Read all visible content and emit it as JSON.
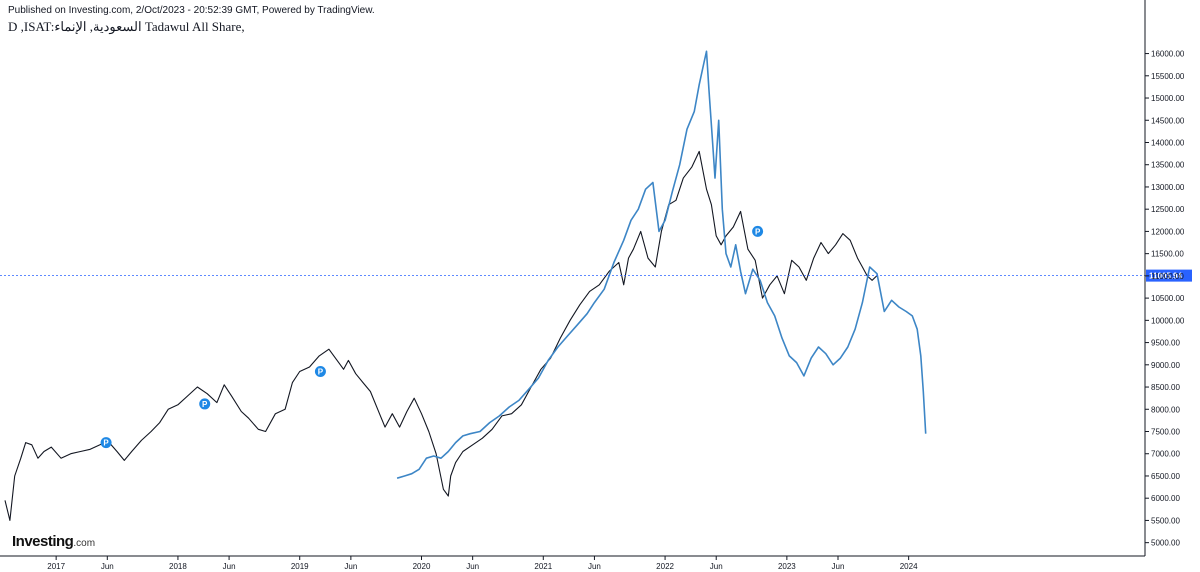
{
  "header": {
    "published": "Published on Investing.com, 2/Oct/2023 - 20:52:39 GMT, Powered by TradingView.",
    "symbol": "D ,ISAT:السعودية, الإنماء Tadawul All Share,"
  },
  "logo": {
    "brand": "Investing",
    "domain": ".com"
  },
  "colors": {
    "black_series": "#131722",
    "blue_series": "#3d86c6",
    "marker": "#1e88e5",
    "price_line": "#2962ff",
    "axis": "#131722"
  },
  "chart_data": {
    "type": "line",
    "ylim": [
      4700,
      16350
    ],
    "y_ticks": [
      "5000.00",
      "5500.00",
      "6000.00",
      "6500.00",
      "7000.00",
      "7500.00",
      "8000.00",
      "8500.00",
      "9000.00",
      "9500.00",
      "10000.00",
      "10500.00",
      "11000.00",
      "11500.00",
      "12000.00",
      "12500.00",
      "13000.00",
      "13500.00",
      "14000.00",
      "14500.00",
      "15000.00",
      "15500.00",
      "16000.00"
    ],
    "x_labels": [
      {
        "label": "2017",
        "t": 2017.0
      },
      {
        "label": "Jun",
        "t": 2017.42
      },
      {
        "label": "2018",
        "t": 2018.0
      },
      {
        "label": "Jun",
        "t": 2018.42
      },
      {
        "label": "2019",
        "t": 2019.0
      },
      {
        "label": "Jun",
        "t": 2019.42
      },
      {
        "label": "2020",
        "t": 2020.0
      },
      {
        "label": "Jun",
        "t": 2020.42
      },
      {
        "label": "2021",
        "t": 2021.0
      },
      {
        "label": "Jun",
        "t": 2021.42
      },
      {
        "label": "2022",
        "t": 2022.0
      },
      {
        "label": "Jun",
        "t": 2022.42
      },
      {
        "label": "2023",
        "t": 2023.0
      },
      {
        "label": "Jun",
        "t": 2023.42
      },
      {
        "label": "2024",
        "t": 2024.0
      }
    ],
    "current_price": 11005.94,
    "current_price_label": "11005.94",
    "series": [
      {
        "color": "#131722",
        "x": [
          2016.58,
          2016.62,
          2016.66,
          2016.71,
          2016.75,
          2016.8,
          2016.85,
          2016.9,
          2016.96,
          2017.04,
          2017.12,
          2017.2,
          2017.28,
          2017.36,
          2017.42,
          2017.5,
          2017.56,
          2017.62,
          2017.7,
          2017.78,
          2017.85,
          2017.92,
          2018.0,
          2018.08,
          2018.16,
          2018.24,
          2018.32,
          2018.38,
          2018.44,
          2018.52,
          2018.58,
          2018.66,
          2018.72,
          2018.8,
          2018.88,
          2018.94,
          2019.0,
          2019.08,
          2019.16,
          2019.24,
          2019.32,
          2019.36,
          2019.4,
          2019.46,
          2019.52,
          2019.58,
          2019.64,
          2019.7,
          2019.76,
          2019.82,
          2019.88,
          2019.94,
          2020.0,
          2020.06,
          2020.12,
          2020.18,
          2020.22,
          2020.24,
          2020.28,
          2020.34,
          2020.42,
          2020.5,
          2020.58,
          2020.66,
          2020.74,
          2020.82,
          2020.9,
          2020.98,
          2021.06,
          2021.14,
          2021.22,
          2021.3,
          2021.38,
          2021.46,
          2021.54,
          2021.62,
          2021.66,
          2021.7,
          2021.74,
          2021.8,
          2021.86,
          2021.92,
          2021.97,
          2022.03,
          2022.09,
          2022.15,
          2022.22,
          2022.28,
          2022.34,
          2022.38,
          2022.42,
          2022.46,
          2022.5,
          2022.56,
          2022.62,
          2022.68,
          2022.74,
          2022.8,
          2022.86,
          2022.92,
          2022.98,
          2023.04,
          2023.1,
          2023.16,
          2023.22,
          2023.28,
          2023.34,
          2023.4,
          2023.46,
          2023.52,
          2023.58,
          2023.62,
          2023.66,
          2023.7,
          2023.74
        ],
        "y": [
          5950,
          5500,
          6500,
          6900,
          7250,
          7200,
          6900,
          7050,
          7150,
          6900,
          7000,
          7050,
          7100,
          7200,
          7300,
          7050,
          6850,
          7050,
          7300,
          7500,
          7700,
          8000,
          8100,
          8300,
          8500,
          8350,
          8150,
          8550,
          8300,
          7950,
          7800,
          7550,
          7500,
          7900,
          8000,
          8600,
          8850,
          8950,
          9200,
          9350,
          9050,
          8900,
          9100,
          8800,
          8600,
          8400,
          8000,
          7600,
          7900,
          7600,
          7950,
          8250,
          7900,
          7500,
          7000,
          6200,
          6050,
          6500,
          6800,
          7050,
          7200,
          7350,
          7550,
          7850,
          7900,
          8100,
          8500,
          8900,
          9150,
          9600,
          10000,
          10350,
          10650,
          10800,
          11100,
          11300,
          10800,
          11400,
          11600,
          12000,
          11400,
          11200,
          12000,
          12600,
          12700,
          13200,
          13450,
          13800,
          12950,
          12600,
          11900,
          11700,
          11900,
          12100,
          12450,
          11600,
          11350,
          10500,
          10800,
          11000,
          10600,
          11350,
          11200,
          10900,
          11400,
          11750,
          11500,
          11700,
          11950,
          11800,
          11400,
          11200,
          11000,
          10900,
          11005.94
        ]
      },
      {
        "color": "#3d86c6",
        "x": [
          2019.8,
          2019.86,
          2019.92,
          2019.98,
          2020.04,
          2020.1,
          2020.16,
          2020.22,
          2020.28,
          2020.34,
          2020.4,
          2020.48,
          2020.56,
          2020.64,
          2020.72,
          2020.8,
          2020.88,
          2020.96,
          2021.04,
          2021.12,
          2021.2,
          2021.28,
          2021.36,
          2021.42,
          2021.5,
          2021.58,
          2021.66,
          2021.72,
          2021.78,
          2021.84,
          2021.9,
          2021.95,
          2022.0,
          2022.06,
          2022.12,
          2022.18,
          2022.24,
          2022.28,
          2022.32,
          2022.34,
          2022.36,
          2022.39,
          2022.41,
          2022.44,
          2022.47,
          2022.5,
          2022.54,
          2022.58,
          2022.62,
          2022.66,
          2022.72,
          2022.78,
          2022.84,
          2022.9,
          2022.96,
          2023.02,
          2023.08,
          2023.14,
          2023.2,
          2023.26,
          2023.32,
          2023.38,
          2023.44,
          2023.5,
          2023.56,
          2023.62,
          2023.68,
          2023.74,
          2023.8,
          2023.86,
          2023.92,
          2023.98,
          2024.03,
          2024.07,
          2024.1,
          2024.12,
          2024.14
        ],
        "y": [
          6450,
          6500,
          6550,
          6650,
          6900,
          6950,
          6900,
          7050,
          7250,
          7400,
          7450,
          7500,
          7700,
          7850,
          8050,
          8200,
          8450,
          8700,
          9100,
          9400,
          9650,
          9900,
          10150,
          10400,
          10700,
          11300,
          11800,
          12250,
          12500,
          12950,
          13100,
          12000,
          12250,
          12900,
          13500,
          14300,
          14700,
          15300,
          15800,
          16050,
          15200,
          14000,
          13200,
          14500,
          12500,
          11500,
          11200,
          11700,
          11100,
          10600,
          11150,
          10900,
          10400,
          10100,
          9600,
          9200,
          9050,
          8750,
          9150,
          9400,
          9250,
          9000,
          9150,
          9400,
          9800,
          10400,
          11200,
          11050,
          10200,
          10450,
          10300,
          10200,
          10100,
          9800,
          9200,
          8400,
          7450
        ]
      }
    ],
    "markers": [
      {
        "label": "P",
        "t": 2017.41,
        "v": 7250
      },
      {
        "label": "P",
        "t": 2018.22,
        "v": 8120
      },
      {
        "label": "P",
        "t": 2019.17,
        "v": 8850
      },
      {
        "label": "P",
        "t": 2022.76,
        "v": 12000
      }
    ]
  }
}
